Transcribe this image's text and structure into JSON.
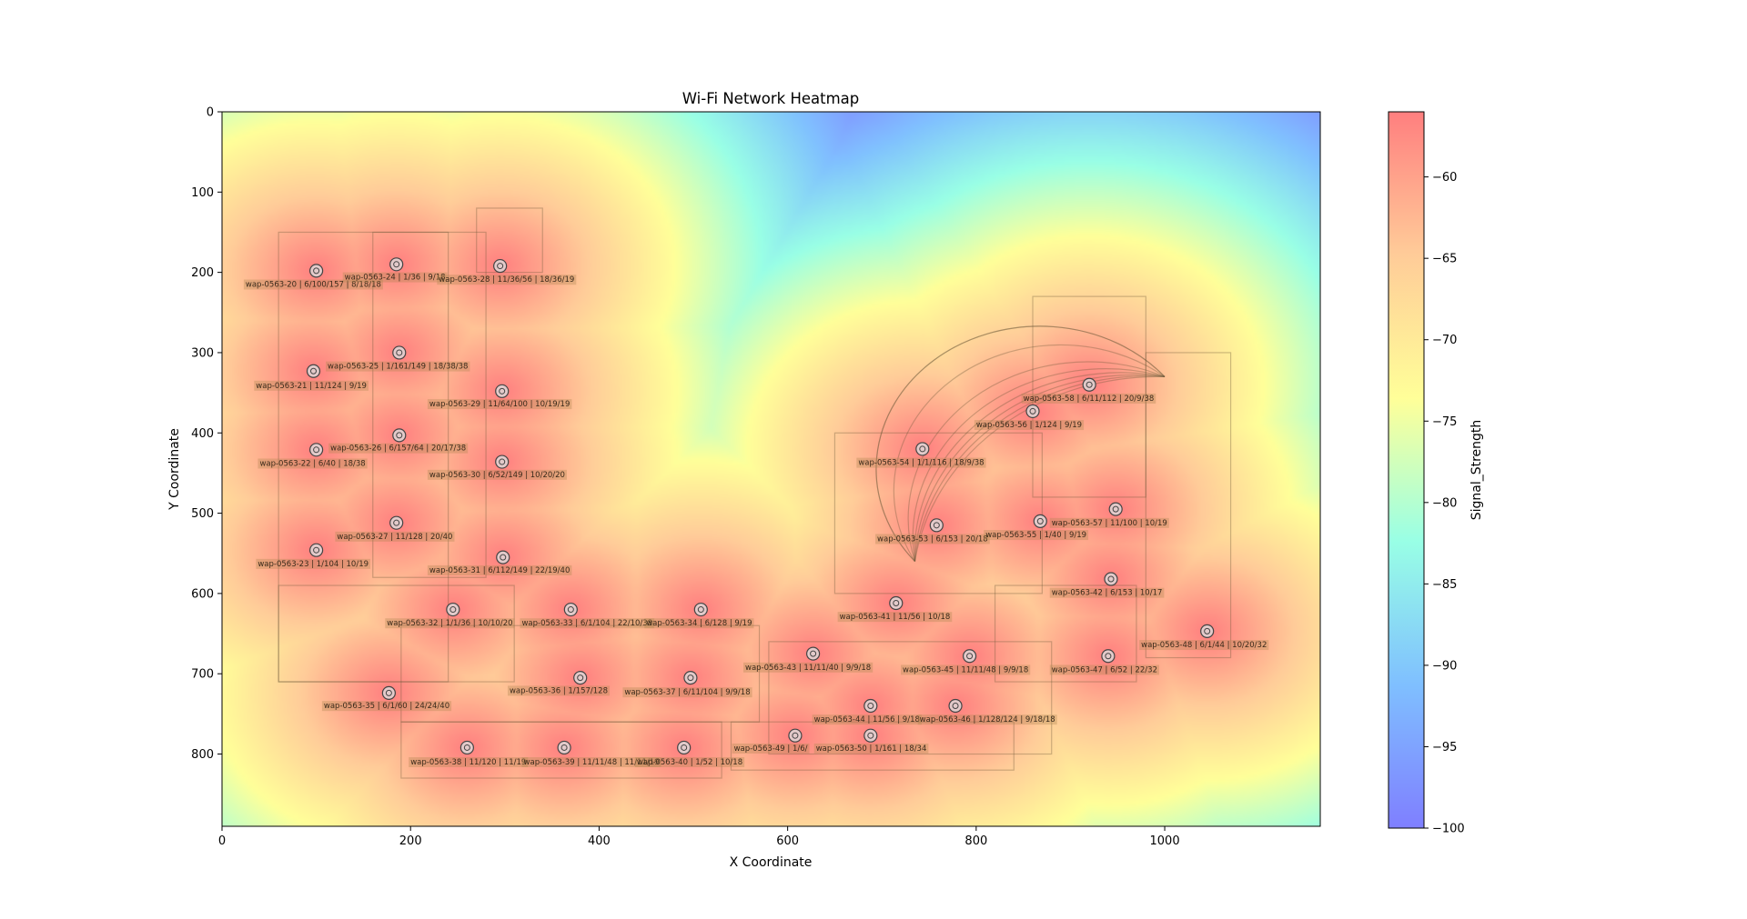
{
  "chart_data": {
    "type": "heatmap",
    "title": "Wi-Fi Network Heatmap",
    "xlabel": "X Coordinate",
    "ylabel": "Y Coordinate",
    "xlim": [
      0,
      1165
    ],
    "ylim": [
      890,
      0
    ],
    "xticks": [
      "0",
      "200",
      "400",
      "600",
      "800",
      "1000"
    ],
    "yticks": [
      "0",
      "100",
      "200",
      "300",
      "400",
      "500",
      "600",
      "700",
      "800"
    ],
    "colorbar": {
      "label": "Signal_Strength",
      "range": [
        -100,
        -56
      ],
      "ticks": [
        "−60",
        "−65",
        "−70",
        "−75",
        "−80",
        "−85",
        "−90",
        "−95",
        "−100"
      ],
      "colormap": [
        "#0000ff",
        "#00c0ff",
        "#66ffcc",
        "#ffff33",
        "#ff9933",
        "#ff0000"
      ],
      "alpha": 0.5
    },
    "grid": false,
    "access_points": [
      {
        "name": "wap-0563-20",
        "label": "wap-0563-20 | 6/100/157 | 8/18/18",
        "x": 100,
        "y": 198,
        "lx": 25,
        "ly": 218
      },
      {
        "name": "wap-0563-24",
        "label": "wap-0563-24 | 1/36 | 9/18",
        "x": 185,
        "y": 190,
        "lx": 130,
        "ly": 209
      },
      {
        "name": "wap-0563-28",
        "label": "wap-0563-28 | 11/36/56 | 18/36/19",
        "x": 295,
        "y": 192,
        "lx": 230,
        "ly": 212
      },
      {
        "name": "wap-0563-25",
        "label": "wap-0563-25 | 1/161/149 | 18/38/38",
        "x": 188,
        "y": 300,
        "lx": 112,
        "ly": 320
      },
      {
        "name": "wap-0563-21",
        "label": "wap-0563-21 | 11/124 | 9/19",
        "x": 97,
        "y": 323,
        "lx": 36,
        "ly": 344
      },
      {
        "name": "wap-0563-29",
        "label": "wap-0563-29 | 11/64/100 | 10/19/19",
        "x": 297,
        "y": 348,
        "lx": 220,
        "ly": 367
      },
      {
        "name": "wap-0563-26",
        "label": "wap-0563-26 | 6/157/64 | 20/17/38",
        "x": 188,
        "y": 403,
        "lx": 115,
        "ly": 422
      },
      {
        "name": "wap-0563-22",
        "label": "wap-0563-22 | 6/40 | 18/38",
        "x": 100,
        "y": 421,
        "lx": 40,
        "ly": 441
      },
      {
        "name": "wap-0563-30",
        "label": "wap-0563-30 | 6/52/149 | 10/20/20",
        "x": 297,
        "y": 436,
        "lx": 220,
        "ly": 455
      },
      {
        "name": "wap-0563-27",
        "label": "wap-0563-27 | 11/128 | 20/40",
        "x": 185,
        "y": 512,
        "lx": 122,
        "ly": 532
      },
      {
        "name": "wap-0563-23",
        "label": "wap-0563-23 | 1/104 | 10/19",
        "x": 100,
        "y": 546,
        "lx": 38,
        "ly": 566
      },
      {
        "name": "wap-0563-31",
        "label": "wap-0563-31 | 6/112/149 | 22/19/40",
        "x": 298,
        "y": 555,
        "lx": 220,
        "ly": 574
      },
      {
        "name": "wap-0563-32",
        "label": "wap-0563-32 | 1/1/36 | 10/10/20",
        "x": 245,
        "y": 620,
        "lx": 175,
        "ly": 640
      },
      {
        "name": "wap-0563-33",
        "label": "wap-0563-33 | 6/1/104 | 22/10/38",
        "x": 370,
        "y": 620,
        "lx": 318,
        "ly": 640
      },
      {
        "name": "wap-0563-34",
        "label": "wap-0563-34 | 6/128 | 9/19",
        "x": 508,
        "y": 620,
        "lx": 450,
        "ly": 640
      },
      {
        "name": "wap-0563-35",
        "label": "wap-0563-35 | 6/1/60 | 24/24/40",
        "x": 177,
        "y": 724,
        "lx": 108,
        "ly": 743
      },
      {
        "name": "wap-0563-36",
        "label": "wap-0563-36 | 1/157/128",
        "x": 380,
        "y": 705,
        "lx": 305,
        "ly": 724
      },
      {
        "name": "wap-0563-37",
        "label": "wap-0563-37 | 6/11/104 | 9/9/18",
        "x": 497,
        "y": 705,
        "lx": 427,
        "ly": 726
      },
      {
        "name": "wap-0563-38",
        "label": "wap-0563-38 | 11/120 | 11/19",
        "x": 260,
        "y": 792,
        "lx": 200,
        "ly": 813
      },
      {
        "name": "wap-0563-39",
        "label": "wap-0563-39 | 11/11/48 | 11/11/19",
        "x": 363,
        "y": 792,
        "lx": 320,
        "ly": 813
      },
      {
        "name": "wap-0563-40",
        "label": "wap-0563-40 | 1/52 | 10/18",
        "x": 490,
        "y": 792,
        "lx": 440,
        "ly": 813
      },
      {
        "name": "wap-0563-43",
        "label": "wap-0563-43 | 11/11/40 | 9/9/18",
        "x": 627,
        "y": 675,
        "lx": 555,
        "ly": 695
      },
      {
        "name": "wap-0563-41",
        "label": "wap-0563-41 | 11/56 | 10/18",
        "x": 715,
        "y": 612,
        "lx": 655,
        "ly": 632
      },
      {
        "name": "wap-0563-44",
        "label": "wap-0563-44 | 11/56 | 9/18",
        "x": 688,
        "y": 740,
        "lx": 628,
        "ly": 760
      },
      {
        "name": "wap-0563-49",
        "label": "wap-0563-49 | 1/6/",
        "x": 608,
        "y": 777,
        "lx": 543,
        "ly": 796
      },
      {
        "name": "wap-0563-50",
        "label": "wap-0563-50 | 1/161 | 18/34",
        "x": 688,
        "y": 777,
        "lx": 630,
        "ly": 796
      },
      {
        "name": "wap-0563-46",
        "label": "wap-0563-46 | 1/128/124 | 9/18/18",
        "x": 778,
        "y": 740,
        "lx": 740,
        "ly": 760
      },
      {
        "name": "wap-0563-45",
        "label": "wap-0563-45 | 11/11/48 | 9/9/18",
        "x": 793,
        "y": 678,
        "lx": 722,
        "ly": 698
      },
      {
        "name": "wap-0563-47",
        "label": "wap-0563-47 | 6/52 | 22/32",
        "x": 940,
        "y": 678,
        "lx": 880,
        "ly": 698
      },
      {
        "name": "wap-0563-42",
        "label": "wap-0563-42 | 6/153 | 10/17",
        "x": 943,
        "y": 582,
        "lx": 880,
        "ly": 602
      },
      {
        "name": "wap-0563-48",
        "label": "wap-0563-48 | 6/1/44 | 10/20/32",
        "x": 1045,
        "y": 647,
        "lx": 975,
        "ly": 667
      },
      {
        "name": "wap-0563-53",
        "label": "wap-0563-53 | 6/153 | 20/18",
        "x": 758,
        "y": 515,
        "lx": 695,
        "ly": 535
      },
      {
        "name": "wap-0563-55",
        "label": "wap-0563-55 | 1/40 | 9/19",
        "x": 868,
        "y": 510,
        "lx": 810,
        "ly": 530
      },
      {
        "name": "wap-0563-57",
        "label": "wap-0563-57 | 11/100 | 10/19",
        "x": 948,
        "y": 495,
        "lx": 880,
        "ly": 515
      },
      {
        "name": "wap-0563-54",
        "label": "wap-0563-54 | 1/1/116 | 18/9/38",
        "x": 743,
        "y": 420,
        "lx": 675,
        "ly": 440
      },
      {
        "name": "wap-0563-56",
        "label": "wap-0563-56 | 1/124 | 9/19",
        "x": 860,
        "y": 373,
        "lx": 800,
        "ly": 393
      },
      {
        "name": "wap-0563-58",
        "label": "wap-0563-58 | 6/11/112 | 20/9/38",
        "x": 920,
        "y": 340,
        "lx": 850,
        "ly": 360
      }
    ]
  }
}
